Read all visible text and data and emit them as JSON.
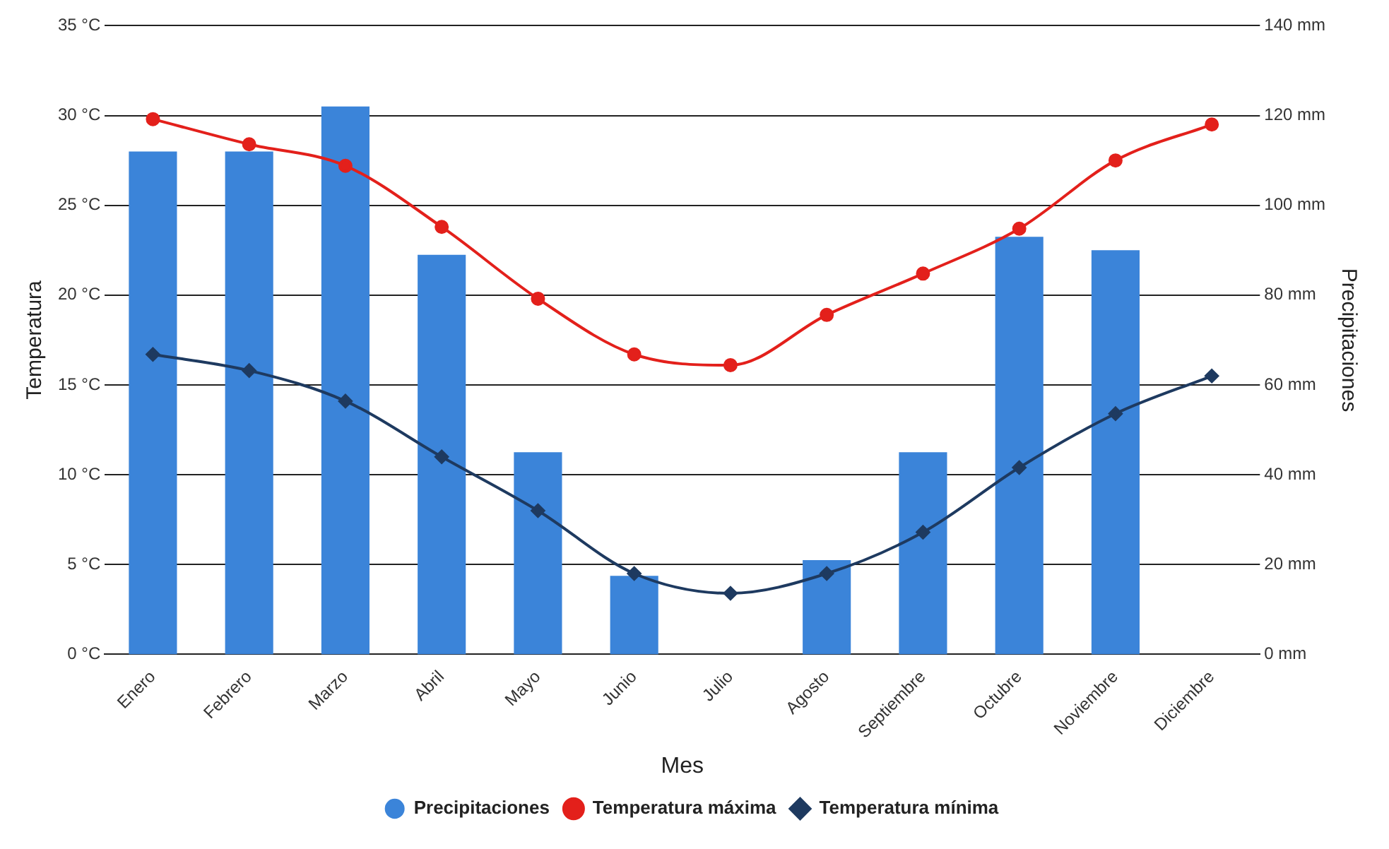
{
  "chart_data": {
    "type": "bar",
    "xlabel": "Mes",
    "ylabel": "Temperatura",
    "y2label": "Precipitaciones",
    "categories": [
      "Enero",
      "Febrero",
      "Marzo",
      "Abril",
      "Mayo",
      "Junio",
      "Julio",
      "Agosto",
      "Septiembre",
      "Octubre",
      "Noviembre",
      "Diciembre"
    ],
    "series": [
      {
        "name": "Precipitaciones",
        "axis": "y2",
        "color": "#3b84d9",
        "values": [
          112,
          112,
          122,
          89,
          45,
          17.5,
          0,
          21,
          45,
          93,
          90,
          0
        ]
      },
      {
        "name": "Temperatura máxima",
        "type": "line",
        "axis": "y",
        "color": "#e3201b",
        "marker": "circle",
        "values": [
          29.8,
          28.4,
          27.2,
          23.8,
          19.8,
          16.7,
          16.1,
          18.9,
          21.2,
          23.7,
          27.5,
          29.5
        ]
      },
      {
        "name": "Temperatura mínima",
        "type": "line",
        "axis": "y",
        "color": "#1e3a60",
        "marker": "diamond",
        "values": [
          16.7,
          15.8,
          14.1,
          11,
          8,
          4.5,
          3.4,
          4.5,
          6.8,
          10.4,
          13.4,
          15.5
        ]
      }
    ],
    "ylim": [
      0,
      35
    ],
    "yticks": [
      {
        "value": 0,
        "label": "0 °C"
      },
      {
        "value": 5,
        "label": "5 °C"
      },
      {
        "value": 10,
        "label": "10 °C"
      },
      {
        "value": 15,
        "label": "15 °C"
      },
      {
        "value": 20,
        "label": "20 °C"
      },
      {
        "value": 25,
        "label": "25 °C"
      },
      {
        "value": 30,
        "label": "30 °C"
      },
      {
        "value": 35,
        "label": "35 °C"
      }
    ],
    "y2lim": [
      0,
      140
    ],
    "y2ticks": [
      {
        "value": 0,
        "label": "0 mm"
      },
      {
        "value": 20,
        "label": "20 mm"
      },
      {
        "value": 40,
        "label": "40 mm"
      },
      {
        "value": 60,
        "label": "60 mm"
      },
      {
        "value": 80,
        "label": "80 mm"
      },
      {
        "value": 100,
        "label": "100 mm"
      },
      {
        "value": 120,
        "label": "120 mm"
      },
      {
        "value": 140,
        "label": "140 mm"
      }
    ],
    "grid": "y",
    "legend": "bottom"
  }
}
